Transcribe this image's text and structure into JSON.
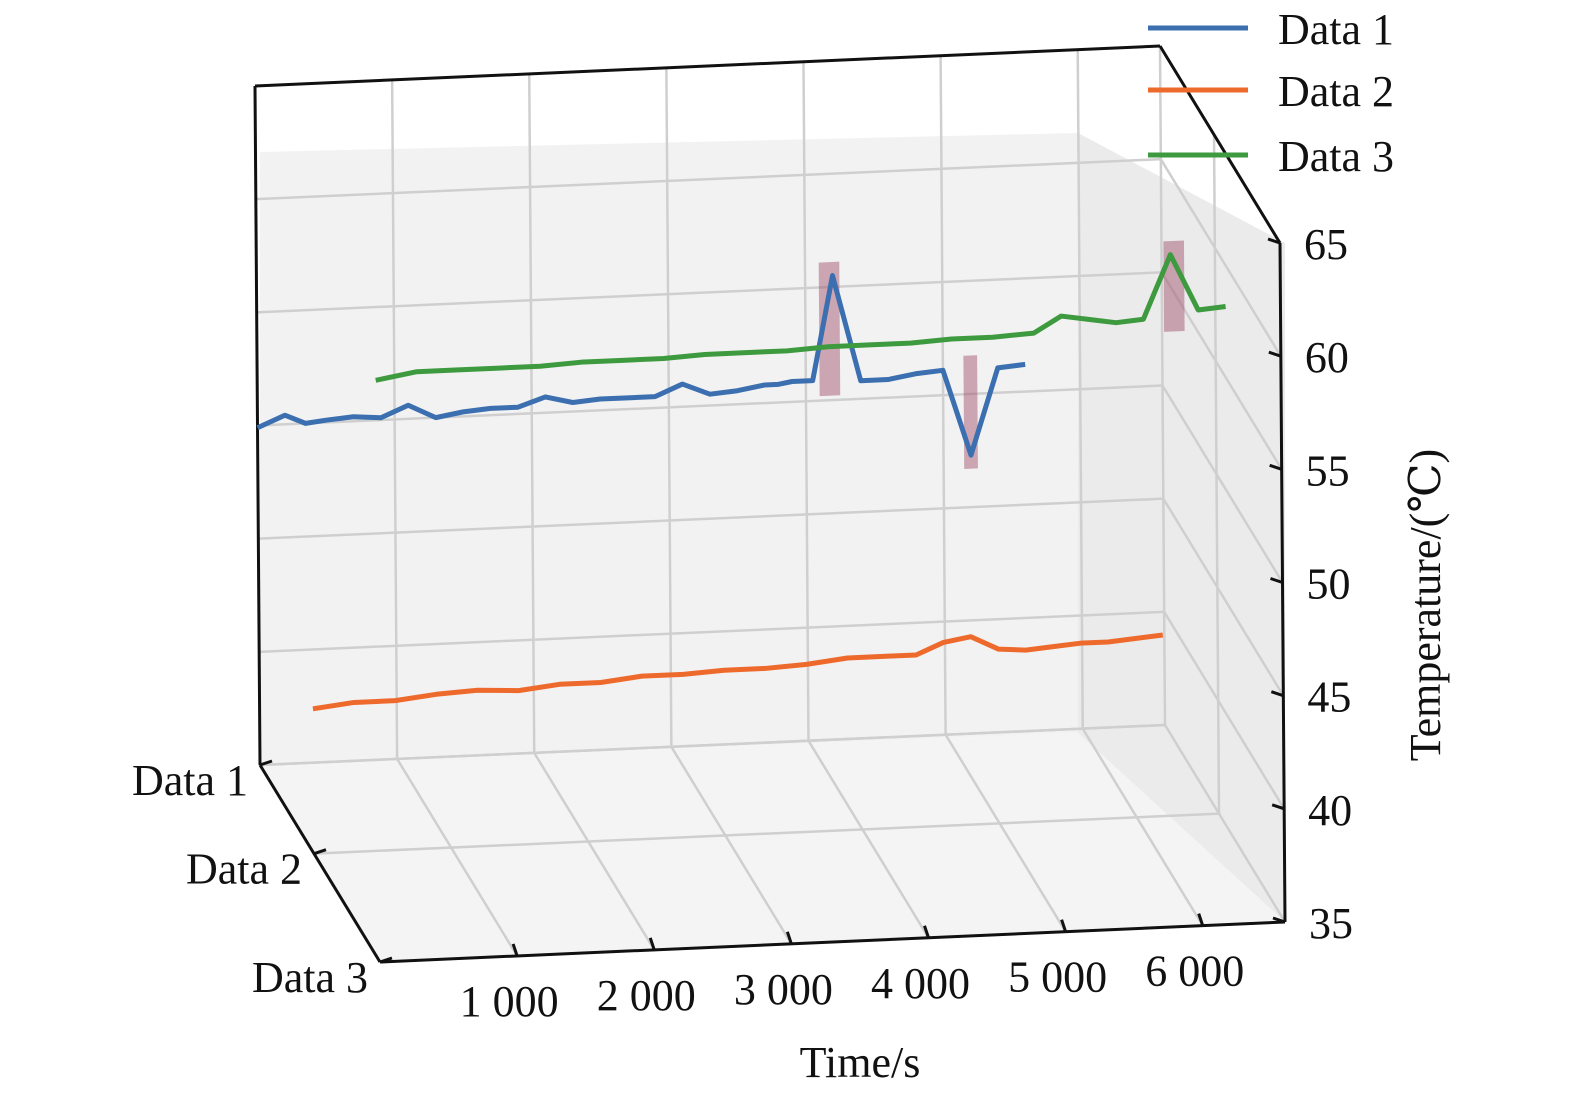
{
  "chart_data": {
    "type": "line",
    "projection": "3d",
    "xlabel": "Time/s",
    "zlabel": "Temperature/(℃)",
    "x_ticks": [
      "1 000",
      "2 000",
      "3 000",
      "4 000",
      "5 000",
      "6 000"
    ],
    "z_ticks": [
      "35",
      "40",
      "45",
      "50",
      "55",
      "60",
      "65"
    ],
    "y_categories": [
      "Data 1",
      "Data 2",
      "Data 3"
    ],
    "xlim": [
      0,
      6600
    ],
    "zlim": [
      35,
      65
    ],
    "grid": true,
    "legend_position": "top-right",
    "series": [
      {
        "name": "Data 1",
        "color": "#3b6fb0",
        "x": [
          0,
          200,
          350,
          500,
          700,
          900,
          1100,
          1300,
          1500,
          1700,
          1900,
          2100,
          2300,
          2500,
          2700,
          2900,
          3100,
          3300,
          3500,
          3700,
          3800,
          3900,
          4050,
          4200,
          4400,
          4600,
          4800,
          5000,
          5200,
          5400,
          5600
        ],
        "y": [
          49.9,
          50.4,
          50.0,
          50.1,
          50.2,
          50.1,
          50.6,
          50.0,
          50.2,
          50.3,
          50.3,
          50.7,
          50.4,
          50.5,
          50.5,
          50.5,
          51.0,
          50.5,
          50.6,
          50.8,
          50.8,
          50.9,
          50.9,
          55.5,
          50.8,
          50.8,
          51.0,
          51.1,
          47.3,
          51.1,
          51.2
        ]
      },
      {
        "name": "Data 2",
        "color": "#ee6a2c",
        "x": [
          0,
          300,
          600,
          900,
          1200,
          1500,
          1800,
          2100,
          2400,
          2700,
          3000,
          3300,
          3600,
          3900,
          4200,
          4400,
          4600,
          4800,
          5000,
          5200,
          5400,
          5600,
          5800,
          6000,
          6200
        ],
        "y": [
          41.4,
          41.6,
          41.6,
          41.8,
          41.9,
          41.8,
          42.0,
          42.0,
          42.2,
          42.2,
          42.3,
          42.3,
          42.4,
          42.6,
          42.6,
          42.6,
          43.1,
          43.3,
          42.7,
          42.6,
          42.7,
          42.8,
          42.8,
          42.9,
          43.0
        ]
      },
      {
        "name": "Data 3",
        "color": "#3e9a3e",
        "x": [
          0,
          300,
          600,
          900,
          1200,
          1500,
          1800,
          2100,
          2400,
          2700,
          3000,
          3300,
          3600,
          3900,
          4200,
          4500,
          4800,
          5000,
          5200,
          5400,
          5600,
          5800,
          6000,
          6200
        ],
        "y": [
          60.7,
          61.0,
          61.0,
          61.0,
          61.0,
          61.1,
          61.1,
          61.1,
          61.2,
          61.2,
          61.2,
          61.3,
          61.3,
          61.3,
          61.4,
          61.4,
          61.5,
          62.2,
          62.0,
          61.8,
          61.9,
          64.7,
          62.2,
          62.3
        ]
      }
    ],
    "anomalies": [
      {
        "series": "Data 1",
        "x_start": 4100,
        "x_end": 4250,
        "color": "#a35a72"
      },
      {
        "series": "Data 1",
        "x_start": 5150,
        "x_end": 5250,
        "color": "#a35a72"
      },
      {
        "series": "Data 3",
        "x_start": 5750,
        "x_end": 5900,
        "color": "#a35a72"
      }
    ]
  }
}
